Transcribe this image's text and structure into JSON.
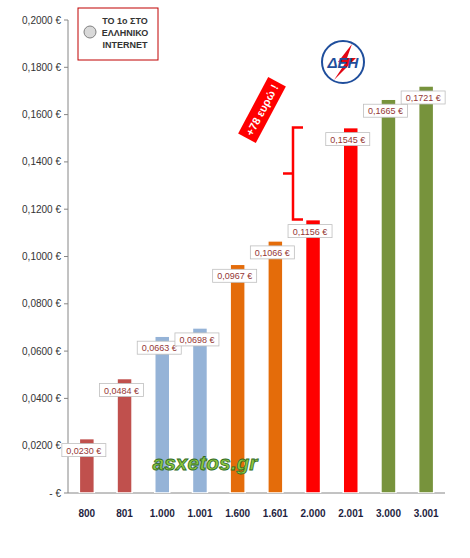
{
  "chart_data": {
    "type": "bar",
    "categories": [
      "800",
      "801",
      "1.000",
      "1.001",
      "1.600",
      "1.601",
      "2.000",
      "2.001",
      "3.000",
      "3.001"
    ],
    "values": [
      0.023,
      0.0484,
      0.0663,
      0.0698,
      0.0967,
      0.1066,
      0.1156,
      0.1545,
      0.1665,
      0.1721
    ],
    "value_labels": [
      "0,0230 €",
      "0,0484 €",
      "0,0663 €",
      "0,0698 €",
      "0,0967 €",
      "0,1066 €",
      "0,1156 €",
      "0,1545 €",
      "0,1665 €",
      "0,1721 €"
    ],
    "colors": [
      "#c0504d",
      "#c0504d",
      "#95b3d7",
      "#95b3d7",
      "#e46c0a",
      "#e46c0a",
      "#ff0000",
      "#ff0000",
      "#77933c",
      "#77933c"
    ],
    "ylim": [
      0,
      0.2
    ],
    "yticks": [
      {
        "value": 0,
        "label": "- €"
      },
      {
        "value": 0.02,
        "label": "0,0200 €"
      },
      {
        "value": 0.04,
        "label": "0,0400 €"
      },
      {
        "value": 0.06,
        "label": "0,0600 €"
      },
      {
        "value": 0.08,
        "label": "0,0800 €"
      },
      {
        "value": 0.1,
        "label": "0,1000 €"
      },
      {
        "value": 0.12,
        "label": "0,1200 €"
      },
      {
        "value": 0.14,
        "label": "0,1400 €"
      },
      {
        "value": 0.16,
        "label": "0,1600 €"
      },
      {
        "value": 0.18,
        "label": "0,1800 €"
      },
      {
        "value": 0.2,
        "label": "0,2000 €"
      }
    ],
    "grid": false,
    "data_labels": true,
    "annotations": [
      "+78 ευρώ !"
    ]
  },
  "logos": {
    "badge": [
      "ΤΟ 1ο ΣΤΟ",
      "ΕΛΛΗΝΙΚΟ",
      "INTERNET"
    ],
    "dei": "ΔΕΗ",
    "site": "asxetos.gr"
  }
}
